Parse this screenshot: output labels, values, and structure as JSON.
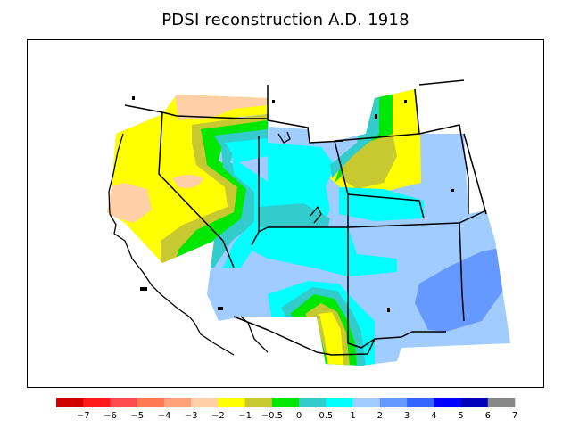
{
  "title": "PDSI reconstruction A.D. 1918",
  "legend": {
    "tick_labels": [
      "−7",
      "−6",
      "−5",
      "−4",
      "−3",
      "−2",
      "−1",
      "−0.5",
      "0",
      "0.5",
      "1",
      "2",
      "3",
      "4",
      "5",
      "6",
      "7"
    ],
    "colors": [
      "#d10000",
      "#ff1a1a",
      "#ff4d4d",
      "#ff7a50",
      "#ffa27a",
      "#ffd0a8",
      "#ffff00",
      "#c8c830",
      "#00e800",
      "#33cccc",
      "#00ffff",
      "#a0ccff",
      "#6699ff",
      "#3366ff",
      "#0000ff",
      "#0000b8",
      "#888888"
    ]
  },
  "map": {
    "field_colors": {
      "orange": "#ffd0a8",
      "yellow": "#ffff00",
      "olive": "#c8c830",
      "green": "#00e800",
      "teal": "#33cccc",
      "cyan": "#00ffff",
      "lightblue": "#a0ccff",
      "midblue": "#6699ff"
    }
  }
}
